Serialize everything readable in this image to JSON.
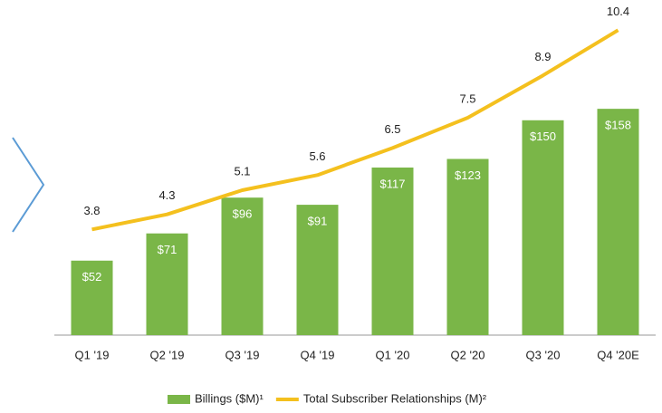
{
  "chart_data": {
    "type": "bar",
    "categories": [
      "Q1 '19",
      "Q2 '19",
      "Q3 '19",
      "Q4 '19",
      "Q1 '20",
      "Q2 '20",
      "Q3 '20",
      "Q4 '20E"
    ],
    "series": [
      {
        "name": "Billings ($M)¹",
        "type": "bar",
        "color": "#7ab648",
        "values": [
          52,
          71,
          96,
          91,
          117,
          123,
          150,
          158
        ],
        "value_labels": [
          "$52",
          "$71",
          "$96",
          "$91",
          "$117",
          "$123",
          "$150",
          "$158"
        ]
      },
      {
        "name": "Total Subscriber Relationships (M)²",
        "type": "line",
        "color": "#f4c01e",
        "axis": "y2",
        "values": [
          3.8,
          4.3,
          5.1,
          5.6,
          6.5,
          7.5,
          8.9,
          10.4
        ]
      }
    ],
    "ylim": [
      0,
      215
    ],
    "y2lim": [
      0.3,
      10.5
    ],
    "legend": "bottom"
  }
}
